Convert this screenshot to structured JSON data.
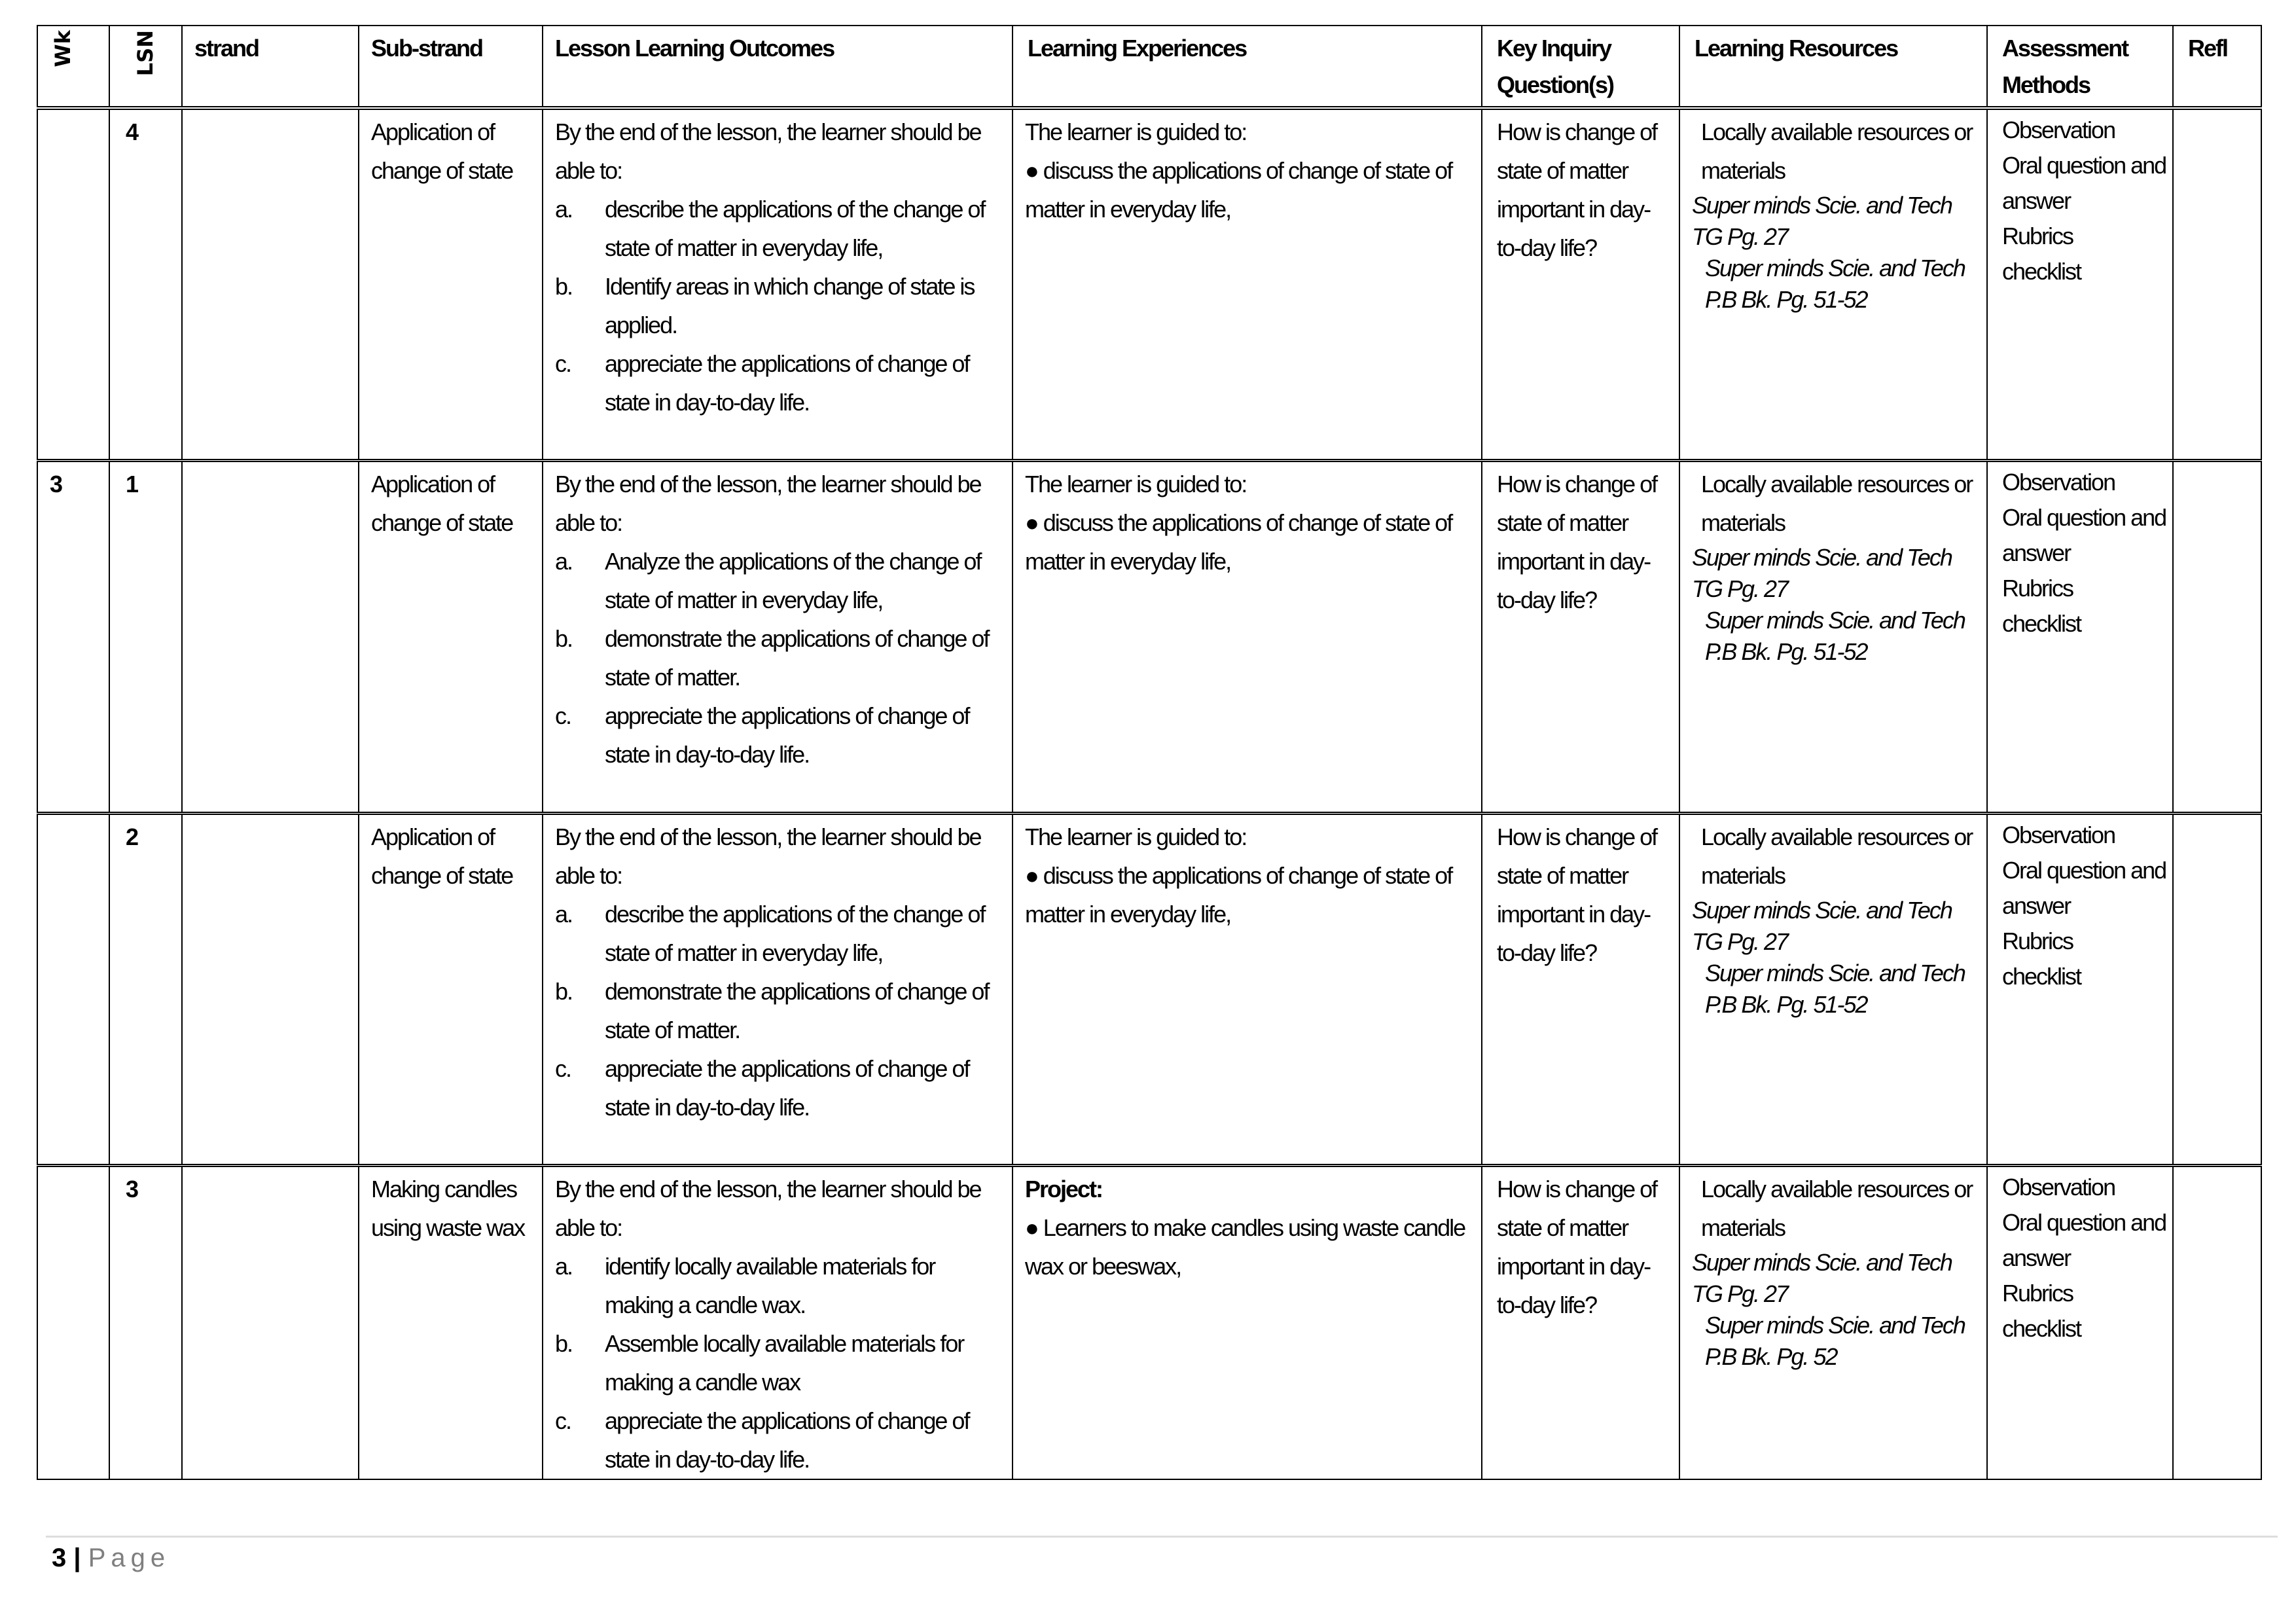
{
  "headers": {
    "wk": "Wk",
    "lsn": "LSN",
    "strand": "strand",
    "substrand": "Sub-strand",
    "outcomes": "Lesson Learning Outcomes",
    "experiences": "Learning Experiences",
    "inquiry": "Key Inquiry Question(s)",
    "resources": "Learning Resources",
    "assessment": "Assessment Methods",
    "reflection": "Refl"
  },
  "rows": [
    {
      "wk": "",
      "lsn": "4",
      "strand": "",
      "substrand": "Application of change of state",
      "outcomes_intro": "By the end of the lesson, the learner should be able to:",
      "outcomes": [
        {
          "marker": "a.",
          "text": "describe the applications of the change of state of matter in everyday life,"
        },
        {
          "marker": "b.",
          "text": "Identify areas in which change of state is applied."
        },
        {
          "marker": "c.",
          "text": "appreciate the applications of change of state in day-to-day life."
        }
      ],
      "experiences_heading": "",
      "experiences_intro": "The learner is guided to:",
      "experiences": [
        "● discuss the applications of change of state of matter in everyday life,"
      ],
      "inquiry": "How is change of state of matter important in day-to-day life?",
      "resources": [
        "Locally available resources or materials",
        "Super minds Scie. and Tech TG Pg. 27",
        "Super minds Scie. and Tech P.B Bk. Pg. 51-52"
      ],
      "assessment": [
        "Observation",
        "Oral question and answer",
        "Rubrics",
        "checklist"
      ],
      "reflection": ""
    },
    {
      "wk": "3",
      "lsn": "1",
      "strand": "",
      "substrand": "Application of change of state",
      "outcomes_intro": "By the end of the lesson, the learner should be able to:",
      "outcomes": [
        {
          "marker": "a.",
          "text": "Analyze the applications of the change of state of matter in everyday life,"
        },
        {
          "marker": "b.",
          "text": "demonstrate the applications of change of state of matter."
        },
        {
          "marker": "c.",
          "text": "appreciate the applications of change of state in day-to-day life."
        }
      ],
      "experiences_heading": "",
      "experiences_intro": "The learner is guided to:",
      "experiences": [
        "● discuss the applications of change of state of matter in everyday life,"
      ],
      "inquiry": "How is change of state of matter important in day-to-day life?",
      "resources": [
        "Locally available resources or materials",
        "Super minds Scie. and Tech TG Pg. 27",
        "Super minds Scie. and Tech P.B Bk. Pg. 51-52"
      ],
      "assessment": [
        "Observation",
        "Oral question and answer",
        "Rubrics",
        "checklist"
      ],
      "reflection": ""
    },
    {
      "wk": "",
      "lsn": "2",
      "strand": "",
      "substrand": "Application of change of state",
      "outcomes_intro": "By the end of the lesson, the learner should be able to:",
      "outcomes": [
        {
          "marker": "a.",
          "text": "describe the applications of the change of state of matter in everyday life,"
        },
        {
          "marker": "b.",
          "text": "demonstrate the applications of change of state of matter."
        },
        {
          "marker": "c.",
          "text": "appreciate the applications of change of state in day-to-day life."
        }
      ],
      "experiences_heading": "",
      "experiences_intro": "The learner is guided to:",
      "experiences": [
        "● discuss the applications of change of state of matter in everyday life,"
      ],
      "inquiry": "How is change of state of matter important in day-to-day life?",
      "resources": [
        "Locally available resources or materials",
        "Super minds Scie. and Tech TG Pg. 27",
        "Super minds Scie. and Tech P.B Bk. Pg. 51-52"
      ],
      "assessment": [
        "Observation",
        "Oral question and answer",
        "Rubrics",
        "checklist"
      ],
      "reflection": ""
    },
    {
      "wk": "",
      "lsn": "3",
      "strand": "",
      "substrand": "Making candles using waste wax",
      "outcomes_intro": "By the end of the lesson, the learner should be able to:",
      "outcomes": [
        {
          "marker": "a.",
          "text": "identify locally available materials for making a candle wax."
        },
        {
          "marker": "b.",
          "text": "Assemble locally available materials for making a candle wax"
        },
        {
          "marker": "c.",
          "text": "appreciate the applications of change of state in day-to-day life."
        }
      ],
      "experiences_heading": "Project:",
      "experiences_intro": "",
      "experiences": [
        "● Learners to make candles using waste candle wax or beeswax,"
      ],
      "inquiry": "How is change of state of matter important in day-to-day life?",
      "resources": [
        "Locally available resources or materials",
        "Super minds Scie. and Tech TG Pg. 27",
        "Super minds Scie. and Tech P.B Bk. Pg. 52"
      ],
      "assessment": [
        "Observation",
        "Oral question and answer",
        "Rubrics",
        "checklist"
      ],
      "reflection": ""
    }
  ],
  "footer": {
    "page_number": "3",
    "separator": "|",
    "page_word": "Page"
  }
}
